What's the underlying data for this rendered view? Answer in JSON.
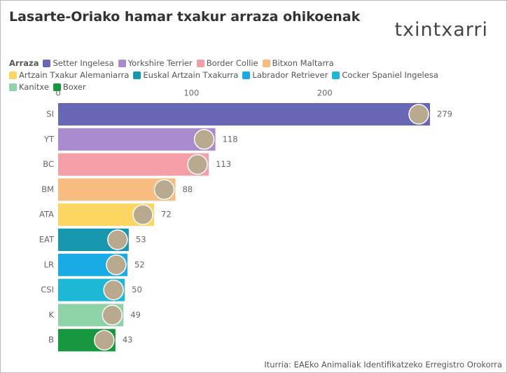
{
  "chart_data": {
    "type": "hbar",
    "title": "Lasarte-Oriako hamar txakur arraza ohikoenak",
    "brand": "txintxarri",
    "legend": {
      "title": "Arraza",
      "items": [
        "Setter Ingelesa",
        "Yorkshire Terrier",
        "Border Collie",
        "Bitxon Maltarra",
        "Artzain Txakur Alemaniarra",
        "Euskal Artzain Txakurra",
        "Labrador Retriever",
        "Cocker Spaniel Ingelesa",
        "Kanitxe",
        "Boxer"
      ]
    },
    "categories": [
      "SI",
      "YT",
      "BC",
      "BM",
      "ATA",
      "EAT",
      "LR",
      "CSI",
      "K",
      "B"
    ],
    "values": [
      279,
      118,
      113,
      88,
      72,
      53,
      52,
      50,
      49,
      43
    ],
    "colors": [
      "#6767b5",
      "#a98bd0",
      "#f49fa7",
      "#f8bb80",
      "#fcd562",
      "#1898ae",
      "#19abe6",
      "#1db8d6",
      "#8ed3a8",
      "#17983f"
    ],
    "xlim": [
      0,
      300
    ],
    "xticks": [
      0,
      100,
      200
    ],
    "source": "Iturria: EAEko Animaliak Identifikatzeko Erregistro Orokorra"
  }
}
